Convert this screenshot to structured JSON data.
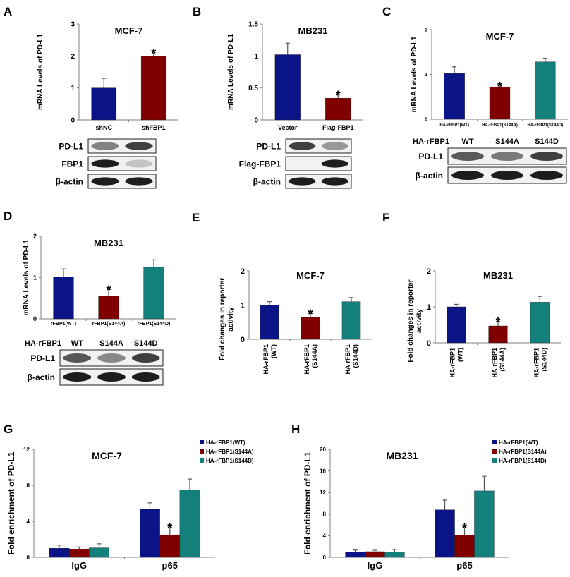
{
  "colors": {
    "blue": "#0a1487",
    "red": "#800000",
    "teal": "#13807c",
    "axis": "#808080",
    "text": "#000000"
  },
  "chart_data": [
    {
      "panel": "A",
      "type": "bar",
      "title": "MCF-7",
      "ylabel": "mRNA Levels of PD-L1",
      "ylim": [
        0,
        3
      ],
      "yticks": [
        "0",
        "1",
        "2",
        "3"
      ],
      "categories": [
        "shNC",
        "shFBP1"
      ],
      "values": [
        1.0,
        2.0
      ],
      "errors": [
        0.3,
        0.1
      ],
      "bar_colors": [
        "blue",
        "red"
      ],
      "significance": [
        "",
        "*"
      ],
      "blot": {
        "lane_header": "",
        "lanes": [],
        "rows": [
          "PD-L1",
          "FBP1",
          "β-actin"
        ]
      }
    },
    {
      "panel": "B",
      "type": "bar",
      "title": "MB231",
      "ylabel": "mRNA Levels of PD-L1",
      "ylim": [
        0,
        1.5
      ],
      "yticks": [
        "0",
        "0.5",
        "1",
        "1.5"
      ],
      "categories": [
        "Vector",
        "Flag-FBP1"
      ],
      "values": [
        1.02,
        0.34
      ],
      "errors": [
        0.18,
        0.05
      ],
      "bar_colors": [
        "blue",
        "red"
      ],
      "significance": [
        "",
        "*"
      ],
      "blot": {
        "lane_header": "",
        "lanes": [],
        "rows": [
          "PD-L1",
          "Flag-FBP1",
          "β-actin"
        ]
      }
    },
    {
      "panel": "C",
      "type": "bar",
      "title": "MCF-7",
      "ylabel": "mRNA Levels of PD-L1",
      "ylim": [
        0,
        2
      ],
      "yticks": [
        "0",
        "1",
        "2"
      ],
      "categories": [
        "HA-rFBP1(WT)",
        "HA-rFBP1(S144A)",
        "HA-rFBP1(S144D)"
      ],
      "values": [
        1.02,
        0.72,
        1.28
      ],
      "errors": [
        0.15,
        0.02,
        0.08
      ],
      "bar_colors": [
        "blue",
        "red",
        "teal"
      ],
      "significance": [
        "",
        "*",
        ""
      ],
      "blot": {
        "lane_header": "HA-rFBP1",
        "lanes": [
          "WT",
          "S144A",
          "S144D"
        ],
        "rows": [
          "PD-L1",
          "β-actin"
        ]
      }
    },
    {
      "panel": "D",
      "type": "bar",
      "title": "MB231",
      "ylabel": "mRNA Levels of PD-L1",
      "ylim": [
        0,
        2
      ],
      "yticks": [
        "0",
        "1",
        "2"
      ],
      "categories": [
        "rFBP1(WT)",
        "rFBP1(S144A)",
        "rFBP1(S144D)"
      ],
      "values": [
        1.02,
        0.56,
        1.25
      ],
      "errors": [
        0.19,
        0.15,
        0.18
      ],
      "bar_colors": [
        "blue",
        "red",
        "teal"
      ],
      "significance": [
        "",
        "*",
        ""
      ],
      "blot": {
        "lane_header": "HA-rFBP1",
        "lanes": [
          "WT",
          "S144A",
          "S144D"
        ],
        "rows": [
          "PD-L1",
          "β-actin"
        ]
      }
    },
    {
      "panel": "E",
      "type": "bar",
      "title": "MCF-7",
      "ylabel": "Fold changes in reporter activity",
      "ylim": [
        0,
        2
      ],
      "yticks": [
        "0",
        "1",
        "2"
      ],
      "categories": [
        "HA-rFBP1 (WT)",
        "HA-rFBP1 (S144A)",
        "HA-rFBP1 (S144D)"
      ],
      "values": [
        1.0,
        0.65,
        1.1
      ],
      "errors": [
        0.1,
        0.1,
        0.12
      ],
      "bar_colors": [
        "blue",
        "red",
        "teal"
      ],
      "significance": [
        "",
        "*",
        ""
      ]
    },
    {
      "panel": "F",
      "type": "bar",
      "title": "MB231",
      "ylabel": "Fold changes in reporter activity",
      "ylim": [
        0,
        2
      ],
      "yticks": [
        "0",
        "1",
        "2"
      ],
      "categories": [
        "HA-rFBP1 (WT)",
        "HA-rFBP1 (S144A)",
        "HA-rFBP1 (S144D)"
      ],
      "values": [
        1.0,
        0.47,
        1.13
      ],
      "errors": [
        0.07,
        0.12,
        0.16
      ],
      "bar_colors": [
        "blue",
        "red",
        "teal"
      ],
      "significance": [
        "",
        "*",
        ""
      ]
    },
    {
      "panel": "G",
      "type": "bar",
      "title": "MCF-7",
      "ylabel": "Fold enrichment of PD-L1",
      "ylim": [
        0,
        12
      ],
      "yticks": [
        "0",
        "4",
        "8",
        "12"
      ],
      "categories": [
        "IgG",
        "p65"
      ],
      "legend_position": "top-right",
      "series": [
        {
          "name": "HA-rFBP1(WT)",
          "color": "blue",
          "values": [
            1.0,
            5.35
          ],
          "errors": [
            0.35,
            0.7
          ],
          "significance": [
            "",
            ""
          ]
        },
        {
          "name": "HA-rFBP1(S144A)",
          "color": "red",
          "values": [
            0.9,
            2.5
          ],
          "errors": [
            0.25,
            0.85
          ],
          "significance": [
            "",
            "*"
          ]
        },
        {
          "name": "HA-rFBP1(S144D)",
          "color": "teal",
          "values": [
            1.05,
            7.5
          ],
          "errors": [
            0.45,
            1.2
          ],
          "significance": [
            "",
            ""
          ]
        }
      ]
    },
    {
      "panel": "H",
      "type": "bar",
      "title": "MB231",
      "ylabel": "Fold enrichment of PD-L1",
      "ylim": [
        0,
        20
      ],
      "yticks": [
        "0",
        "4",
        "8",
        "12",
        "16",
        "20"
      ],
      "categories": [
        "IgG",
        "p65"
      ],
      "legend_position": "top-right",
      "series": [
        {
          "name": "HA-rFBP1(WT)",
          "color": "blue",
          "values": [
            1.0,
            8.8
          ],
          "errors": [
            0.35,
            1.8
          ],
          "significance": [
            "",
            ""
          ]
        },
        {
          "name": "HA-rFBP1(S144A)",
          "color": "red",
          "values": [
            1.05,
            4.1
          ],
          "errors": [
            0.25,
            1.4
          ],
          "significance": [
            "",
            "*"
          ]
        },
        {
          "name": "HA-rFBP1(S144D)",
          "color": "teal",
          "values": [
            1.0,
            12.3
          ],
          "errors": [
            0.45,
            2.7
          ],
          "significance": [
            "",
            ""
          ]
        }
      ]
    }
  ]
}
